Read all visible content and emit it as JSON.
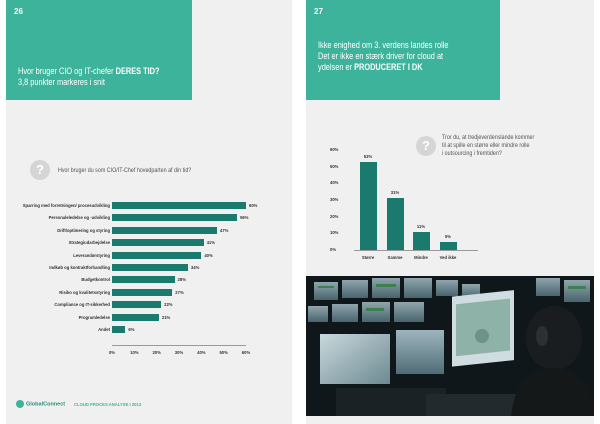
{
  "left_page": {
    "page_number": "26",
    "header": {
      "line1_prefix": "Hvor bruger CIO og IT-chefer ",
      "line1_bold": "DERES TID?",
      "line2": "3,8 punkter markeres i snit"
    },
    "question": "Hvor bruger du som CIO/IT-Chef hovedparten af din tid?",
    "chart_data": {
      "type": "bar",
      "orientation": "horizontal",
      "categories": [
        "Sparring med forretningen/ procesudvikling",
        "Personaleledelse og -udvikling",
        "Drift/optimering og styring",
        "Strategiudarbejdelse",
        "Leverandørstyring",
        "Indkøb og kontraktforhandling",
        "Budgetkontrol",
        "Risiko og kvalitetsstyring",
        "Compliance og IT-sikkerhed",
        "Programledelse",
        "Andet"
      ],
      "values": [
        60,
        56,
        47,
        41,
        40,
        34,
        28,
        27,
        22,
        21,
        6
      ],
      "value_labels": [
        "60%",
        "56%",
        "47%",
        "41%",
        "40%",
        "34%",
        "28%",
        "27%",
        "22%",
        "21%",
        "6%"
      ],
      "x_ticks": [
        "0%",
        "10%",
        "20%",
        "30%",
        "40%",
        "50%",
        "60%"
      ],
      "xlim": [
        0,
        60
      ]
    },
    "footer": {
      "logo": "GlobalConnect",
      "reference": "CLOUD PROCES ANALYSE I 2013"
    }
  },
  "right_page": {
    "page_number": "27",
    "header": {
      "line1": "Ikke enighed om 3. verdens landes rolle",
      "line2": "Det er ikke en stærk driver for cloud at",
      "line3_prefix": "ydelsen er ",
      "line3_bold": "PRODUCERET I DK"
    },
    "question_lines": [
      "Tror du, at tredjeverdenslande kommer",
      "til at spille en større eller mindre rolle",
      "i outsourcing i fremtiden?"
    ],
    "chart_data": {
      "type": "bar",
      "orientation": "vertical",
      "categories": [
        "Større",
        "Samme",
        "Mindre",
        "Ved ikke"
      ],
      "values": [
        53,
        31,
        11,
        5
      ],
      "value_labels": [
        "53%",
        "31%",
        "11%",
        "5%"
      ],
      "y_ticks": [
        "0%",
        "10%",
        "20%",
        "30%",
        "40%",
        "50%",
        "60%"
      ],
      "ylim": [
        0,
        60
      ]
    }
  }
}
